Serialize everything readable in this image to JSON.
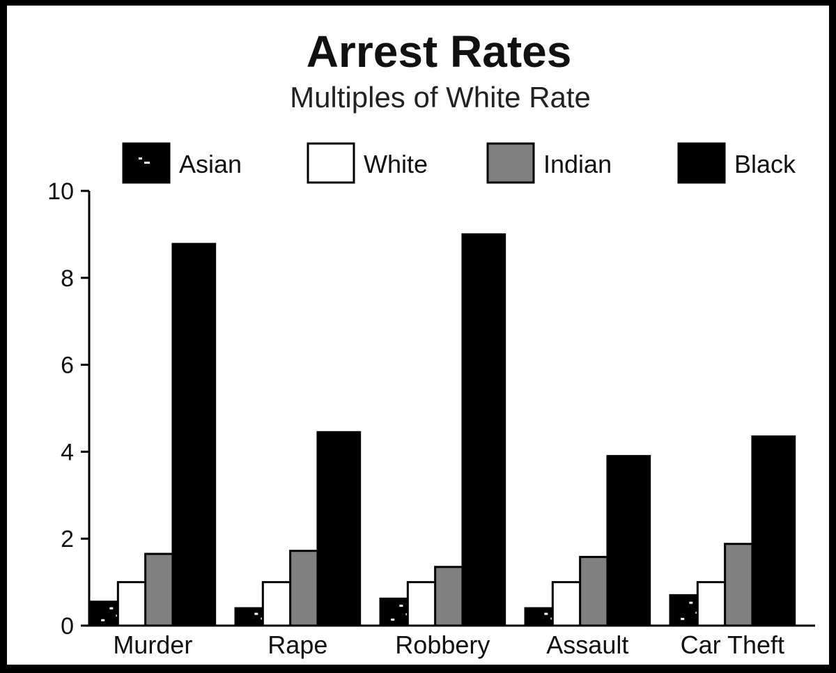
{
  "chart_data": {
    "type": "bar",
    "title": "Arrest Rates",
    "subtitle": "Multiples of White Rate",
    "xlabel": "",
    "ylabel": "",
    "ylim": [
      0,
      10
    ],
    "y_ticks": [
      "0",
      "2",
      "4",
      "6",
      "8",
      "10"
    ],
    "categories": [
      "Murder",
      "Rape",
      "Robbery",
      "Assault",
      "Car Theft"
    ],
    "series": [
      {
        "name": "Asian",
        "color": "#000000",
        "pattern": "speckled",
        "values": [
          0.55,
          0.4,
          0.62,
          0.4,
          0.7
        ]
      },
      {
        "name": "White",
        "color": "#ffffff",
        "values": [
          1.0,
          1.0,
          1.0,
          1.0,
          1.0
        ]
      },
      {
        "name": "Indian",
        "color": "#808080",
        "values": [
          1.65,
          1.72,
          1.35,
          1.58,
          1.88
        ]
      },
      {
        "name": "Black",
        "color": "#000000",
        "values": [
          8.78,
          4.45,
          9.0,
          3.9,
          4.35
        ]
      }
    ],
    "legend_position": "top",
    "grid": false
  }
}
